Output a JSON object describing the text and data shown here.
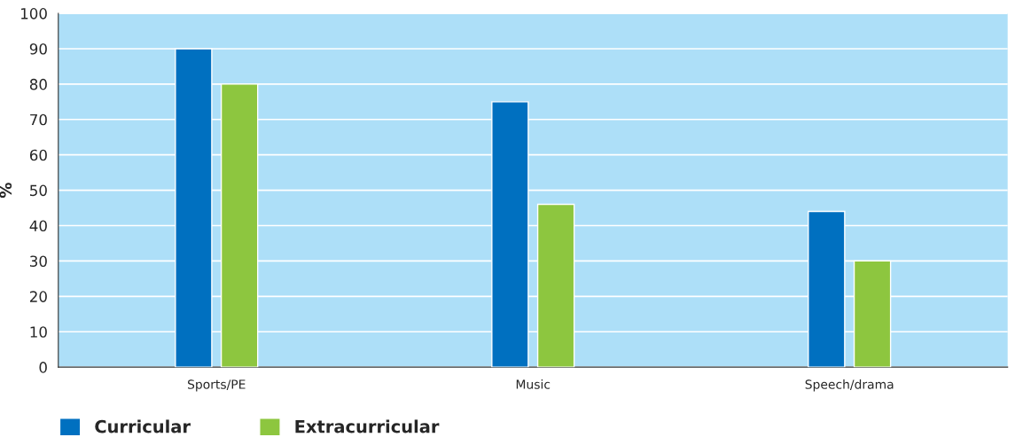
{
  "chart_data": {
    "type": "bar",
    "ylabel": "%",
    "categories": [
      "Sports/PE",
      "Music",
      "Speech/drama"
    ],
    "series": [
      {
        "name": "Curricular",
        "color": "#0070c0",
        "values": [
          90,
          75,
          44
        ]
      },
      {
        "name": "Extracurricular",
        "color": "#8dc63f",
        "values": [
          80,
          46,
          30
        ]
      }
    ],
    "ylim": [
      0,
      100
    ],
    "yticks": [
      0,
      10,
      20,
      30,
      40,
      50,
      60,
      70,
      80,
      90,
      100
    ],
    "grid": "y",
    "legend": "bottom left"
  }
}
